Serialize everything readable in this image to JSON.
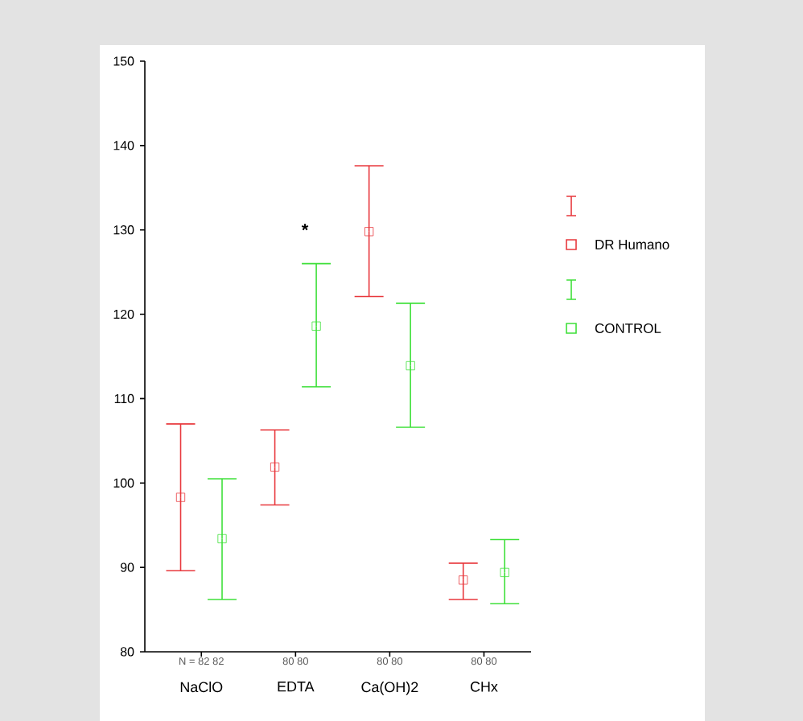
{
  "chart_data": {
    "type": "scatter",
    "categories": [
      "NaClO",
      "EDTA",
      "Ca(OH)2",
      "CHx"
    ],
    "series": [
      {
        "name": "DR Humano",
        "color": "#e8383d",
        "values": [
          98.3,
          101.9,
          129.8,
          88.5
        ],
        "errors": [
          [
            89.6,
            107.0
          ],
          [
            97.4,
            106.3
          ],
          [
            122.1,
            137.6
          ],
          [
            86.2,
            90.5
          ]
        ]
      },
      {
        "name": "CONTROL",
        "color": "#3fe03a",
        "values": [
          93.4,
          118.6,
          113.9,
          89.4
        ],
        "errors": [
          [
            86.2,
            100.5
          ],
          [
            111.4,
            126.0
          ],
          [
            106.6,
            121.3
          ],
          [
            85.7,
            93.3
          ]
        ]
      }
    ],
    "ylim": [
      80,
      150
    ],
    "yticks": [
      80,
      90,
      100,
      110,
      120,
      130,
      140,
      150
    ],
    "marker": "square",
    "line_style": "none",
    "grid": false,
    "legend": "right",
    "annotations": [
      "N = 82 82",
      "80 80",
      "80 80",
      "80 80",
      "*"
    ]
  }
}
